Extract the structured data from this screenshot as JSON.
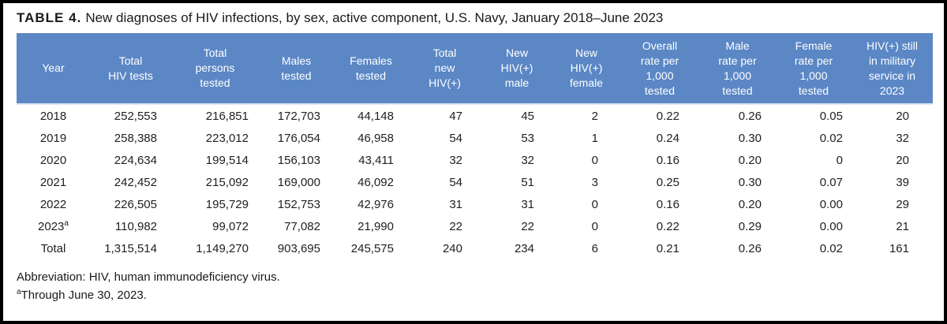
{
  "title": {
    "label": "TABLE 4.",
    "text": "New diagnoses of HIV infections, by sex, active component, U.S. Navy, January 2018–June 2023"
  },
  "colors": {
    "header_bg": "#5b87c5",
    "header_text": "#ffffff",
    "divider": "#dbe5f1",
    "body_text": "#212121"
  },
  "table": {
    "columns": [
      {
        "id": "year",
        "label": "Year"
      },
      {
        "id": "total-hiv-tests",
        "label": "Total\nHIV tests"
      },
      {
        "id": "total-persons-tested",
        "label": "Total\npersons\ntested"
      },
      {
        "id": "males-tested",
        "label": "Males\ntested"
      },
      {
        "id": "females-tested",
        "label": "Females\ntested"
      },
      {
        "id": "total-new-hiv",
        "label": "Total\nnew\nHIV(+)"
      },
      {
        "id": "new-hiv-male",
        "label": "New\nHIV(+)\nmale"
      },
      {
        "id": "new-hiv-female",
        "label": "New\nHIV(+)\nfemale"
      },
      {
        "id": "overall-rate",
        "label": "Overall\nrate per\n1,000\ntested"
      },
      {
        "id": "male-rate",
        "label": "Male\nrate per\n1,000\ntested"
      },
      {
        "id": "female-rate",
        "label": "Female\nrate per\n1,000\ntested"
      },
      {
        "id": "still-in-service",
        "label": "HIV(+) still\nin military\nservice in\n2023"
      }
    ],
    "rows": [
      {
        "year": "2018",
        "year_sup": "",
        "cells": [
          "252,553",
          "216,851",
          "172,703",
          "44,148",
          "47",
          "45",
          "2",
          "0.22",
          "0.26",
          "0.05",
          "20"
        ]
      },
      {
        "year": "2019",
        "year_sup": "",
        "cells": [
          "258,388",
          "223,012",
          "176,054",
          "46,958",
          "54",
          "53",
          "1",
          "0.24",
          "0.30",
          "0.02",
          "32"
        ]
      },
      {
        "year": "2020",
        "year_sup": "",
        "cells": [
          "224,634",
          "199,514",
          "156,103",
          "43,411",
          "32",
          "32",
          "0",
          "0.16",
          "0.20",
          "0",
          "20"
        ]
      },
      {
        "year": "2021",
        "year_sup": "",
        "cells": [
          "242,452",
          "215,092",
          "169,000",
          "46,092",
          "54",
          "51",
          "3",
          "0.25",
          "0.30",
          "0.07",
          "39"
        ]
      },
      {
        "year": "2022",
        "year_sup": "",
        "cells": [
          "226,505",
          "195,729",
          "152,753",
          "42,976",
          "31",
          "31",
          "0",
          "0.16",
          "0.20",
          "0.00",
          "29"
        ]
      },
      {
        "year": "2023",
        "year_sup": "a",
        "cells": [
          "110,982",
          "99,072",
          "77,082",
          "21,990",
          "22",
          "22",
          "0",
          "0.22",
          "0.29",
          "0.00",
          "21"
        ]
      },
      {
        "year": "Total",
        "year_sup": "",
        "cells": [
          "1,315,514",
          "1,149,270",
          "903,695",
          "245,575",
          "240",
          "234",
          "6",
          "0.21",
          "0.26",
          "0.02",
          "161"
        ]
      }
    ]
  },
  "footnotes": [
    {
      "sup": "",
      "text": "Abbreviation: HIV, human immunodeficiency virus."
    },
    {
      "sup": "a",
      "text": "Through June 30, 2023."
    }
  ]
}
